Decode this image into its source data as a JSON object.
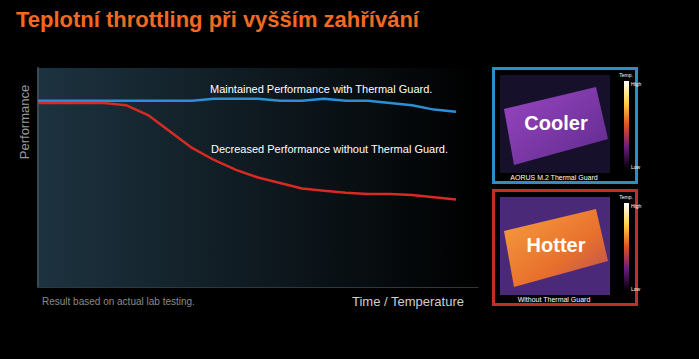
{
  "chart_data": {
    "type": "line",
    "title": "Teplotní throttling při vyšším zahřívání",
    "y_label": "Performance",
    "x_label": "Time / Temperature",
    "footnote": "Result based on actual lab testing.",
    "xlim": [
      0,
      100
    ],
    "ylim": [
      0,
      100
    ],
    "tick_labels": false,
    "grid": false,
    "series": [
      {
        "name": "Maintained Performance with Thermal Guard.",
        "color": "#2b8fd6",
        "x": [
          0,
          5,
          10,
          15,
          20,
          25,
          30,
          35,
          40,
          45,
          50,
          55,
          60,
          65,
          70,
          75,
          80,
          85,
          90,
          95
        ],
        "values": [
          85,
          85,
          85,
          85,
          85,
          85,
          85,
          85,
          86,
          86,
          86,
          85,
          85,
          86,
          85,
          85,
          84,
          83,
          81,
          80
        ]
      },
      {
        "name": "Decreased Performance without Thermal Guard.",
        "color": "#d62a22",
        "x": [
          0,
          5,
          10,
          15,
          20,
          25,
          30,
          35,
          40,
          45,
          50,
          55,
          60,
          65,
          70,
          75,
          80,
          85,
          90,
          95
        ],
        "values": [
          84,
          84,
          84,
          84,
          83,
          78.5,
          71,
          63.5,
          58,
          53.5,
          50,
          47.5,
          45,
          44,
          43,
          42.5,
          42.5,
          42,
          41,
          40
        ]
      }
    ],
    "thermal_images": [
      {
        "label": "Cooler",
        "caption": "AORUS M.2 Thermal Guard",
        "color": "#2a8fc4"
      },
      {
        "label": "Hotter",
        "caption": "Without Thermal Guard",
        "color": "#c0302a"
      }
    ],
    "colorbar_labels": {
      "title": "Temp.",
      "high": "High",
      "low": "Low"
    }
  }
}
